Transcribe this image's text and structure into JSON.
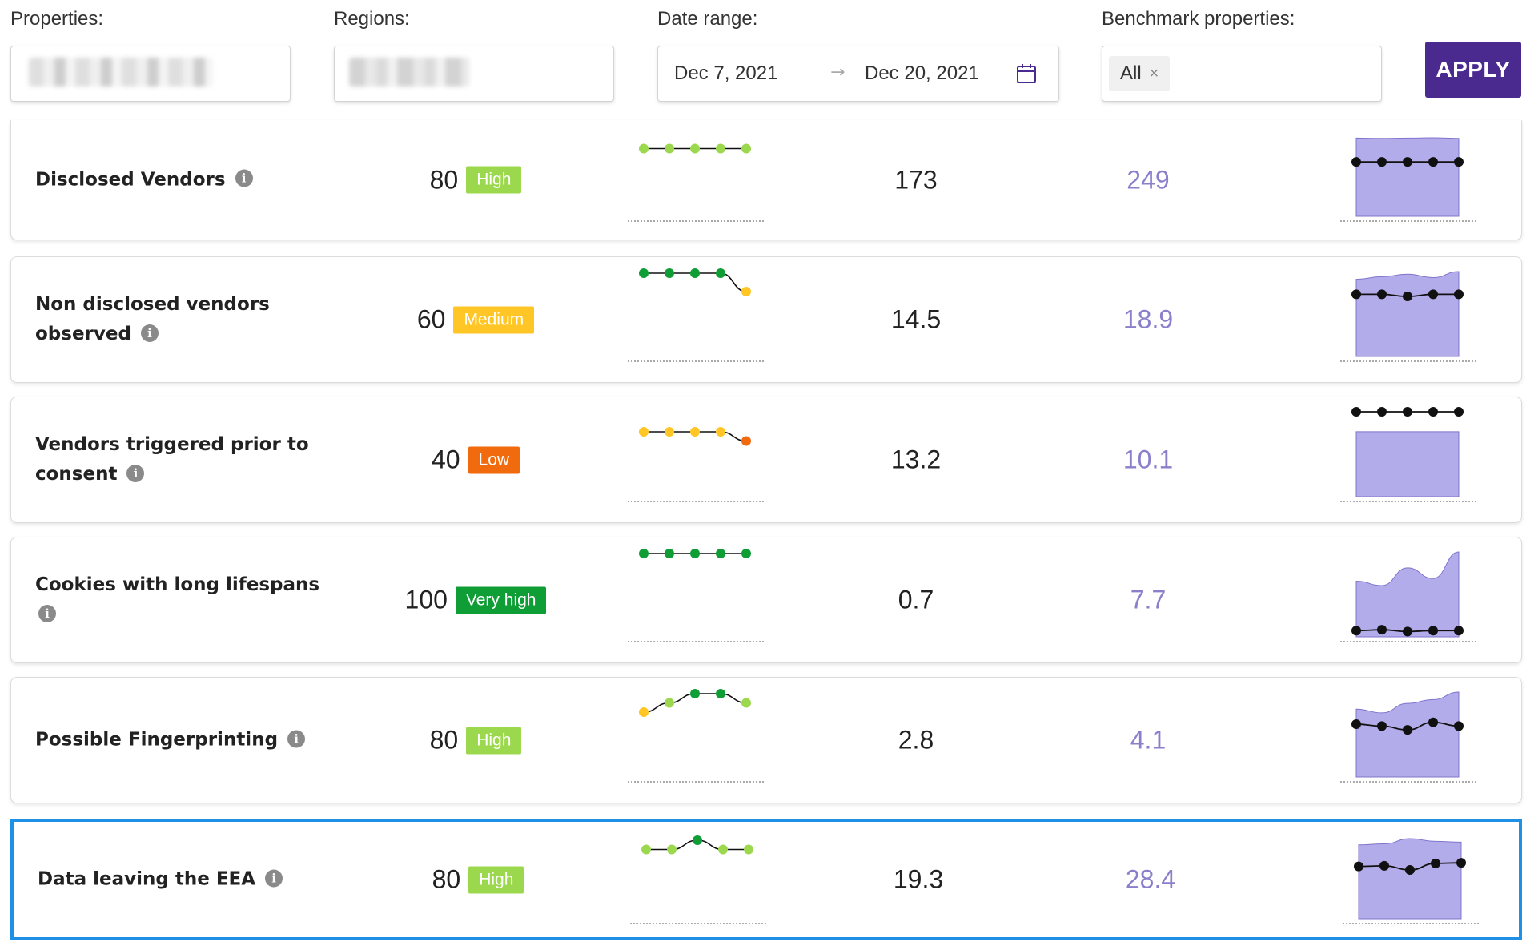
{
  "filters": {
    "properties_label": "Properties:",
    "regions_label": "Regions:",
    "date_range_label": "Date range:",
    "date_start": "Dec 7, 2021",
    "date_arrow": "→",
    "date_end": "Dec 20, 2021",
    "benchmark_label": "Benchmark properties:",
    "benchmark_tag": "All",
    "benchmark_tag_remove": "×",
    "apply_label": "APPLY"
  },
  "colors": {
    "very_high": "#0f9d35",
    "high": "#9cd84e",
    "medium": "#ffc626",
    "low": "#f26a0e",
    "benchmark_text": "#8a7fcb",
    "benchmark_area": "#b3acea",
    "apply_bg": "#4b2a8f",
    "selected_border": "#1e90e6"
  },
  "rows": [
    {
      "metric": "Disclosed Vendors",
      "score": "80",
      "level": "High",
      "level_key": "high",
      "value": "173",
      "benchmark": "249",
      "trend_points": [
        80,
        80,
        80,
        80,
        80
      ],
      "trend_levels": [
        "high",
        "high",
        "high",
        "high",
        "high"
      ],
      "bench_line": [
        173,
        173,
        173,
        173,
        173
      ],
      "bench_area": [
        249,
        248,
        249,
        250,
        248
      ]
    },
    {
      "metric": "Non disclosed vendors observed",
      "score": "60",
      "level": "Medium",
      "level_key": "medium",
      "value": "14.5",
      "benchmark": "18.9",
      "trend_points": [
        100,
        100,
        100,
        100,
        60
      ],
      "trend_levels": [
        "very_high",
        "very_high",
        "very_high",
        "very_high",
        "medium"
      ],
      "bench_line": [
        14.5,
        14.5,
        14.0,
        14.5,
        14.5
      ],
      "bench_area": [
        18.0,
        18.6,
        19.2,
        18.4,
        19.8
      ]
    },
    {
      "metric": "Vendors triggered prior to consent",
      "score": "40",
      "level": "Low",
      "level_key": "low",
      "value": "13.2",
      "benchmark": "10.1",
      "trend_points": [
        60,
        60,
        60,
        60,
        40
      ],
      "trend_levels": [
        "medium",
        "medium",
        "medium",
        "medium",
        "low"
      ],
      "bench_line": [
        13.2,
        13.2,
        13.2,
        13.2,
        13.2
      ],
      "bench_area": [
        10.1,
        10.1,
        10.1,
        10.1,
        10.1
      ]
    },
    {
      "metric": "Cookies with long lifespans",
      "score": "100",
      "level": "Very high",
      "level_key": "very_high",
      "value": "0.7",
      "benchmark": "7.7",
      "trend_points": [
        100,
        100,
        100,
        100,
        100
      ],
      "trend_levels": [
        "very_high",
        "very_high",
        "very_high",
        "very_high",
        "very_high"
      ],
      "bench_line": [
        0.7,
        0.8,
        0.6,
        0.7,
        0.7
      ],
      "bench_area": [
        6.3,
        5.8,
        7.8,
        6.6,
        9.6
      ]
    },
    {
      "metric": "Possible Fingerprinting",
      "score": "80",
      "level": "High",
      "level_key": "high",
      "value": "2.8",
      "benchmark": "4.1",
      "trend_points": [
        60,
        80,
        100,
        100,
        80
      ],
      "trend_levels": [
        "medium",
        "high",
        "very_high",
        "very_high",
        "high"
      ],
      "bench_line": [
        2.8,
        2.7,
        2.5,
        2.9,
        2.7
      ],
      "bench_area": [
        3.6,
        3.4,
        3.9,
        4.1,
        4.5
      ]
    },
    {
      "metric": "Data leaving the EEA",
      "score": "80",
      "level": "High",
      "level_key": "high",
      "value": "19.3",
      "benchmark": "28.4",
      "trend_points": [
        80,
        80,
        100,
        80,
        80
      ],
      "trend_levels": [
        "high",
        "high",
        "very_high",
        "high",
        "high"
      ],
      "bench_line": [
        19.3,
        19.5,
        18.0,
        20.4,
        20.6
      ],
      "bench_area": [
        27.2,
        27.6,
        29.5,
        28.5,
        28.2
      ]
    }
  ]
}
